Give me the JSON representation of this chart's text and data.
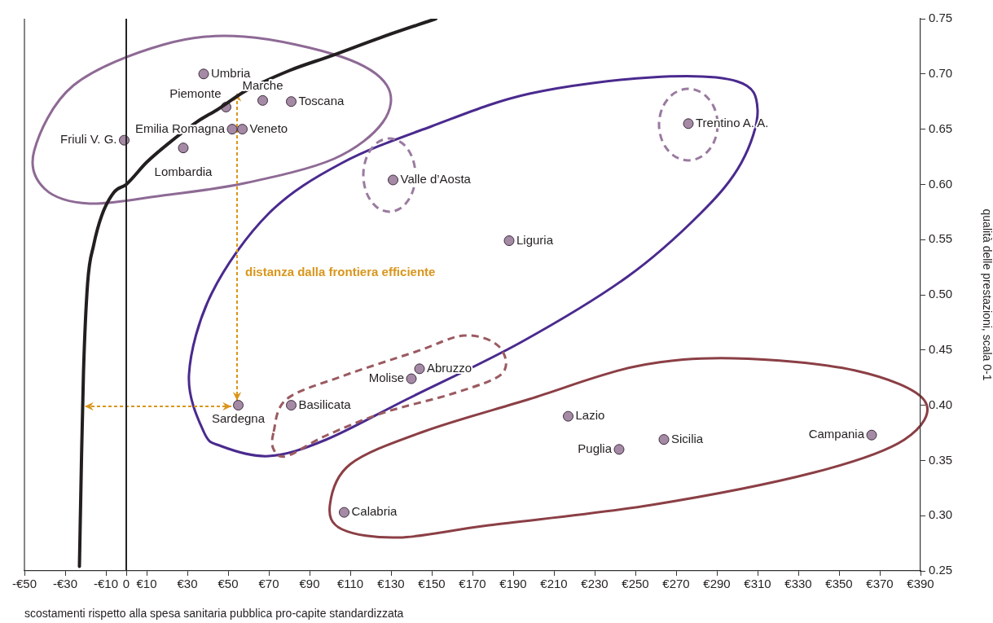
{
  "chart_data": {
    "type": "scatter",
    "xlabel": "scostamenti rispetto alla spesa sanitaria pubblica pro-capite standardizzata",
    "ylabel": "qualità delle prestazioni, scala 0-1",
    "xlim": [
      -50,
      390
    ],
    "xticks": [
      {
        "value": -50,
        "label": "-€50"
      },
      {
        "value": -30,
        "label": "-€30"
      },
      {
        "value": -10,
        "label": "-€10"
      },
      {
        "value": 0,
        "label": "0"
      },
      {
        "value": 10,
        "label": "€10"
      },
      {
        "value": 30,
        "label": "€30"
      },
      {
        "value": 50,
        "label": "€50"
      },
      {
        "value": 70,
        "label": "€70"
      },
      {
        "value": 90,
        "label": "€90"
      },
      {
        "value": 110,
        "label": "€110"
      },
      {
        "value": 130,
        "label": "€130"
      },
      {
        "value": 150,
        "label": "€150"
      },
      {
        "value": 170,
        "label": "€170"
      },
      {
        "value": 190,
        "label": "€190"
      },
      {
        "value": 210,
        "label": "€210"
      },
      {
        "value": 230,
        "label": "€230"
      },
      {
        "value": 250,
        "label": "€250"
      },
      {
        "value": 270,
        "label": "€270"
      },
      {
        "value": 290,
        "label": "€290"
      },
      {
        "value": 310,
        "label": "€310"
      },
      {
        "value": 330,
        "label": "€330"
      },
      {
        "value": 350,
        "label": "€350"
      },
      {
        "value": 370,
        "label": "€370"
      },
      {
        "value": 390,
        "label": "€390"
      }
    ],
    "ylim": [
      0.25,
      0.75
    ],
    "yticks": [
      0.25,
      {
        "value": 0.3,
        "label": "0.30"
      },
      0.35,
      {
        "value": 0.4,
        "label": "0.40"
      },
      0.45,
      {
        "value": 0.5,
        "label": "0.50"
      },
      0.55,
      {
        "value": 0.6,
        "label": "0.60"
      },
      0.65,
      {
        "value": 0.7,
        "label": "0.70"
      },
      0.75
    ],
    "grid": false,
    "legend": false,
    "marker": "circle",
    "ref_lines": [
      {
        "axis": "x",
        "value": 0,
        "color": "#222222"
      }
    ],
    "annotations": [
      "distanza dalla frontiera efficiente"
    ],
    "series": [
      {
        "type": "line",
        "color": "#231f20",
        "marker": "none",
        "x": [
          -23,
          -22,
          -21,
          -19,
          -16,
          -12,
          -6,
          0,
          10,
          20,
          35,
          45,
          58,
          80,
          100,
          125,
          152
        ],
        "values": [
          0.254,
          0.35,
          0.43,
          0.51,
          0.545,
          0.572,
          0.593,
          0.6,
          0.62,
          0.636,
          0.657,
          0.668,
          0.684,
          0.703,
          0.716,
          0.733,
          0.75
        ]
      },
      {
        "name": "Umbria",
        "color": "#a58aa5",
        "x": [
          38
        ],
        "values": [
          0.7
        ]
      },
      {
        "name": "Marche",
        "color": "#a58aa5",
        "x": [
          67
        ],
        "values": [
          0.676
        ]
      },
      {
        "name": "Toscana",
        "color": "#a58aa5",
        "x": [
          81
        ],
        "values": [
          0.675
        ]
      },
      {
        "name": "Piemonte",
        "color": "#a58aa5",
        "x": [
          49
        ],
        "values": [
          0.67
        ]
      },
      {
        "name": "Emilia Romagna",
        "color": "#a58aa5",
        "x": [
          52
        ],
        "values": [
          0.65
        ]
      },
      {
        "name": "Veneto",
        "color": "#a58aa5",
        "x": [
          57
        ],
        "values": [
          0.65
        ]
      },
      {
        "name": "Friuli V. G.",
        "color": "#a58aa5",
        "x": [
          -1
        ],
        "values": [
          0.64
        ]
      },
      {
        "name": "Lombardia",
        "color": "#a58aa5",
        "x": [
          28
        ],
        "values": [
          0.633
        ]
      },
      {
        "name": "Valle d’Aosta",
        "color": "#a58aa5",
        "x": [
          131
        ],
        "values": [
          0.604
        ]
      },
      {
        "name": "Liguria",
        "color": "#a58aa5",
        "x": [
          188
        ],
        "values": [
          0.549
        ]
      },
      {
        "name": "Trentino A. A.",
        "color": "#a58aa5",
        "x": [
          276
        ],
        "values": [
          0.655
        ]
      },
      {
        "name": "Abruzzo",
        "color": "#a58aa5",
        "x": [
          144
        ],
        "values": [
          0.433
        ]
      },
      {
        "name": "Molise",
        "color": "#a58aa5",
        "x": [
          140
        ],
        "values": [
          0.424
        ]
      },
      {
        "name": "Sardegna",
        "color": "#a58aa5",
        "x": [
          55
        ],
        "values": [
          0.4
        ]
      },
      {
        "name": "Basilicata",
        "color": "#a58aa5",
        "x": [
          81
        ],
        "values": [
          0.4
        ]
      },
      {
        "name": "Lazio",
        "color": "#a58aa5",
        "x": [
          217
        ],
        "values": [
          0.39
        ]
      },
      {
        "name": "Puglia",
        "color": "#a58aa5",
        "x": [
          242
        ],
        "values": [
          0.36
        ]
      },
      {
        "name": "Sicilia",
        "color": "#a58aa5",
        "x": [
          264
        ],
        "values": [
          0.369
        ]
      },
      {
        "name": "Campania",
        "color": "#a58aa5",
        "x": [
          366
        ],
        "values": [
          0.373
        ]
      },
      {
        "name": "Calabria",
        "color": "#a58aa5",
        "x": [
          107
        ],
        "values": [
          0.303
        ]
      }
    ]
  }
}
